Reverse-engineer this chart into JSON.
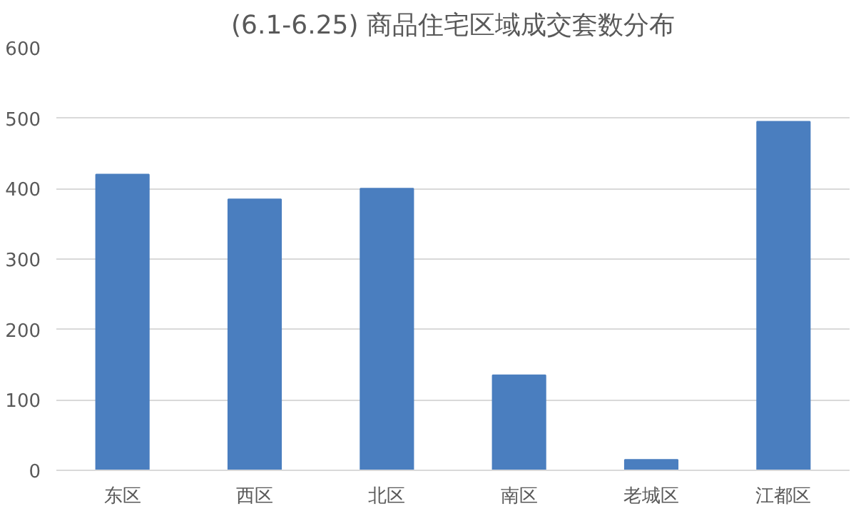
{
  "chart_data": {
    "type": "bar",
    "title": "(6.1-6.25) 商品住宅区域成交套数分布",
    "categories": [
      "东区",
      "西区",
      "北区",
      "南区",
      "老城区",
      "江都区"
    ],
    "values": [
      420,
      385,
      400,
      135,
      15,
      495
    ],
    "color": "#4a7ebf",
    "ylim": [
      0,
      600
    ],
    "yticks": [
      0,
      100,
      200,
      300,
      400,
      500,
      600
    ],
    "grid": "y"
  }
}
